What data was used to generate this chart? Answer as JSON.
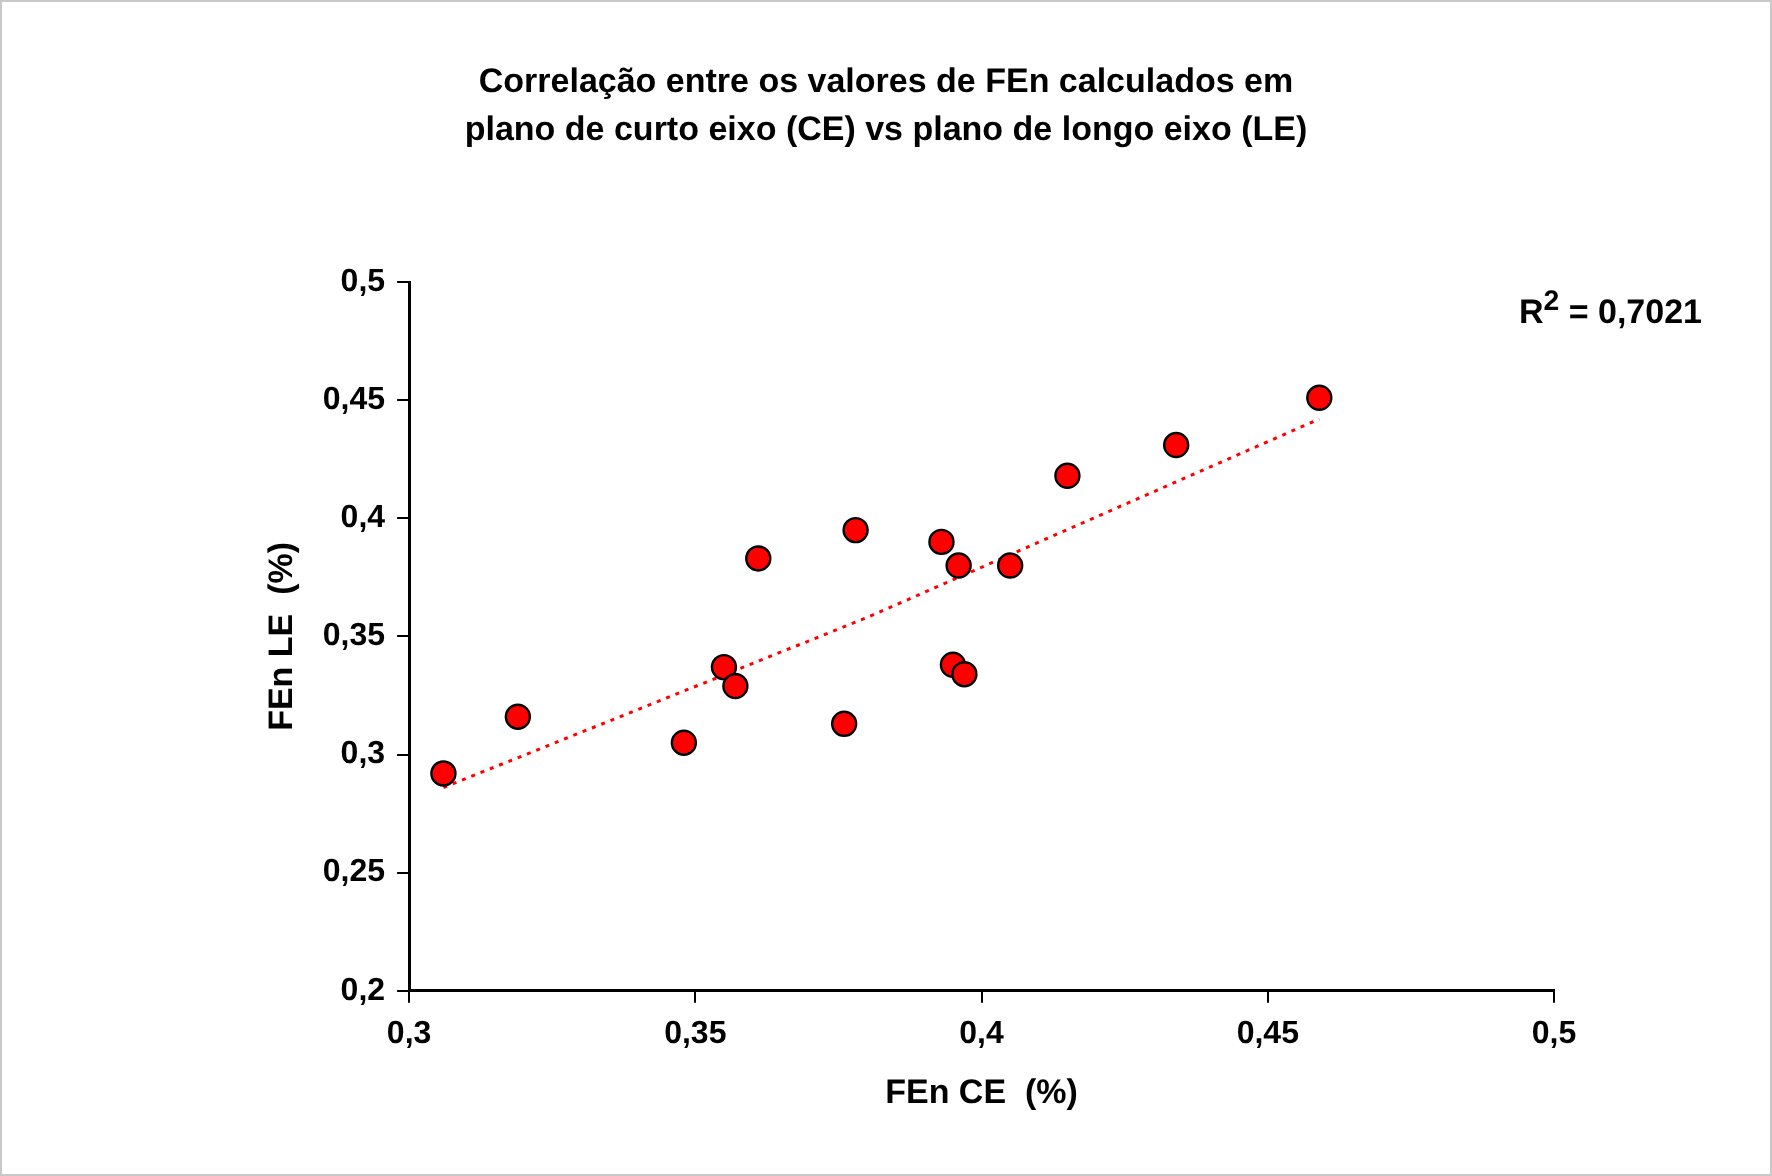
{
  "chart_data": {
    "type": "scatter",
    "title": "Correlação entre os valores de FEn calculados em plano de curto eixo (CE) vs plano de longo eixo (LE)",
    "xlabel": "FEn CE  (%)",
    "ylabel": "FEn LE  (%)",
    "xlim": [
      0.3,
      0.5
    ],
    "xticks": [
      {
        "value": 0.3,
        "label": "0,3"
      },
      {
        "value": 0.35,
        "label": "0,35"
      },
      {
        "value": 0.4,
        "label": "0,4"
      },
      {
        "value": 0.45,
        "label": "0,45"
      },
      {
        "value": 0.5,
        "label": "0,5"
      }
    ],
    "ylim": [
      0.2,
      0.5
    ],
    "yticks": [
      {
        "value": 0.2,
        "label": "0,2"
      },
      {
        "value": 0.25,
        "label": "0,25"
      },
      {
        "value": 0.3,
        "label": "0,3"
      },
      {
        "value": 0.35,
        "label": "0,35"
      },
      {
        "value": 0.4,
        "label": "0,4"
      },
      {
        "value": 0.45,
        "label": "0,45"
      },
      {
        "value": 0.5,
        "label": "0,5"
      }
    ],
    "grid": false,
    "legend": false,
    "marker": "circle",
    "series": [
      {
        "color": "#ff0000",
        "x": [
          0.306,
          0.319,
          0.348,
          0.355,
          0.357,
          0.361,
          0.376,
          0.378,
          0.393,
          0.396,
          0.395,
          0.397,
          0.405,
          0.415,
          0.434,
          0.459
        ],
        "values": [
          0.292,
          0.316,
          0.305,
          0.337,
          0.329,
          0.383,
          0.313,
          0.395,
          0.39,
          0.38,
          0.338,
          0.334,
          0.38,
          0.418,
          0.431,
          0.451
        ]
      },
      {
        "type": "line",
        "color": "#ff0000",
        "line_style": "dotted",
        "marker": "none",
        "x": [
          0.306,
          0.38,
          0.459
        ],
        "values": [
          0.286,
          0.358,
          0.442
        ]
      }
    ],
    "annotations": [
      "R$^{2}$ = 0,7021"
    ]
  }
}
